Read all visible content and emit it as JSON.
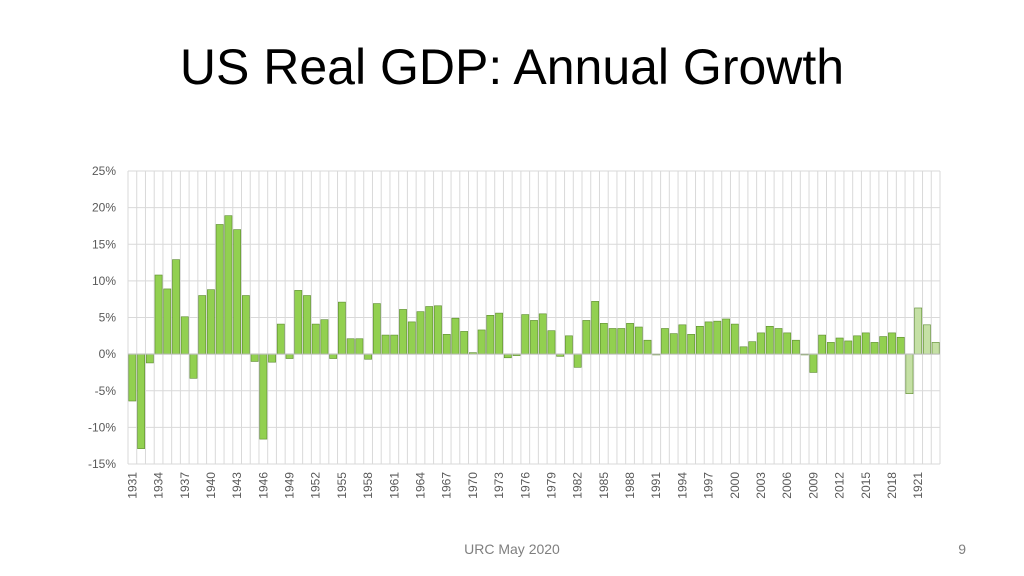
{
  "slide": {
    "title": "US Real GDP: Annual Growth",
    "footer": "URC May 2020",
    "page_number": "9"
  },
  "chart_data": {
    "type": "bar",
    "title": "",
    "xlabel": "",
    "ylabel": "",
    "ylim": [
      -15,
      25
    ],
    "yticks": [
      "25%",
      "20%",
      "15%",
      "10%",
      "5%",
      "0%",
      "-5%",
      "-10%",
      "-15%"
    ],
    "ytick_values": [
      25,
      20,
      15,
      10,
      5,
      0,
      -5,
      -10,
      -15
    ],
    "grid": true,
    "legend": "none",
    "colors": {
      "bar": "#92d050",
      "bar_edge": "#5a8a2c",
      "forecast_bar": "#c5e0a5",
      "grid": "#d9d9d9",
      "axis_text": "#595959"
    },
    "x_tick_labels": [
      "1931",
      "1934",
      "1937",
      "1940",
      "1943",
      "1946",
      "1949",
      "1952",
      "1955",
      "1958",
      "1961",
      "1964",
      "1967",
      "1970",
      "1973",
      "1976",
      "1979",
      "1982",
      "1985",
      "1988",
      "1991",
      "1994",
      "1997",
      "2000",
      "2003",
      "2006",
      "2009",
      "2012",
      "2015",
      "2018",
      "1921"
    ],
    "x_tick_every": 3,
    "categories": [
      "1931",
      "1932",
      "1933",
      "1934",
      "1935",
      "1936",
      "1937",
      "1938",
      "1939",
      "1940",
      "1941",
      "1942",
      "1943",
      "1944",
      "1945",
      "1946",
      "1947",
      "1948",
      "1949",
      "1950",
      "1951",
      "1952",
      "1953",
      "1954",
      "1955",
      "1956",
      "1957",
      "1958",
      "1959",
      "1960",
      "1961",
      "1962",
      "1963",
      "1964",
      "1965",
      "1966",
      "1967",
      "1968",
      "1969",
      "1970",
      "1971",
      "1972",
      "1973",
      "1974",
      "1975",
      "1976",
      "1977",
      "1978",
      "1979",
      "1980",
      "1981",
      "1982",
      "1983",
      "1984",
      "1985",
      "1986",
      "1987",
      "1988",
      "1989",
      "1990",
      "1991",
      "1992",
      "1993",
      "1994",
      "1995",
      "1996",
      "1997",
      "1998",
      "1999",
      "2000",
      "2001",
      "2002",
      "2003",
      "2004",
      "2005",
      "2006",
      "2007",
      "2008",
      "2009",
      "2010",
      "2011",
      "2012",
      "2013",
      "2014",
      "2015",
      "2016",
      "2017",
      "2018",
      "2019",
      "2020",
      "1921",
      "1922",
      "1923"
    ],
    "values": [
      -6.4,
      -12.9,
      -1.2,
      10.8,
      8.9,
      12.9,
      5.1,
      -3.3,
      8.0,
      8.8,
      17.7,
      18.9,
      17.0,
      8.0,
      -1.0,
      -11.6,
      -1.1,
      4.1,
      -0.6,
      8.7,
      8.0,
      4.1,
      4.7,
      -0.6,
      7.1,
      2.1,
      2.1,
      -0.7,
      6.9,
      2.6,
      2.6,
      6.1,
      4.4,
      5.8,
      6.5,
      6.6,
      2.7,
      4.9,
      3.1,
      0.2,
      3.3,
      5.3,
      5.6,
      -0.5,
      -0.2,
      5.4,
      4.6,
      5.5,
      3.2,
      -0.3,
      2.5,
      -1.8,
      4.6,
      7.2,
      4.2,
      3.5,
      3.5,
      4.2,
      3.7,
      1.9,
      -0.1,
      3.5,
      2.8,
      4.0,
      2.7,
      3.8,
      4.4,
      4.5,
      4.8,
      4.1,
      1.0,
      1.7,
      2.9,
      3.8,
      3.5,
      2.9,
      1.9,
      -0.1,
      -2.5,
      2.6,
      1.6,
      2.2,
      1.8,
      2.5,
      2.9,
      1.6,
      2.4,
      2.9,
      2.3,
      -5.4,
      6.3,
      4.0,
      1.6
    ],
    "forecast_from_index": 89
  }
}
